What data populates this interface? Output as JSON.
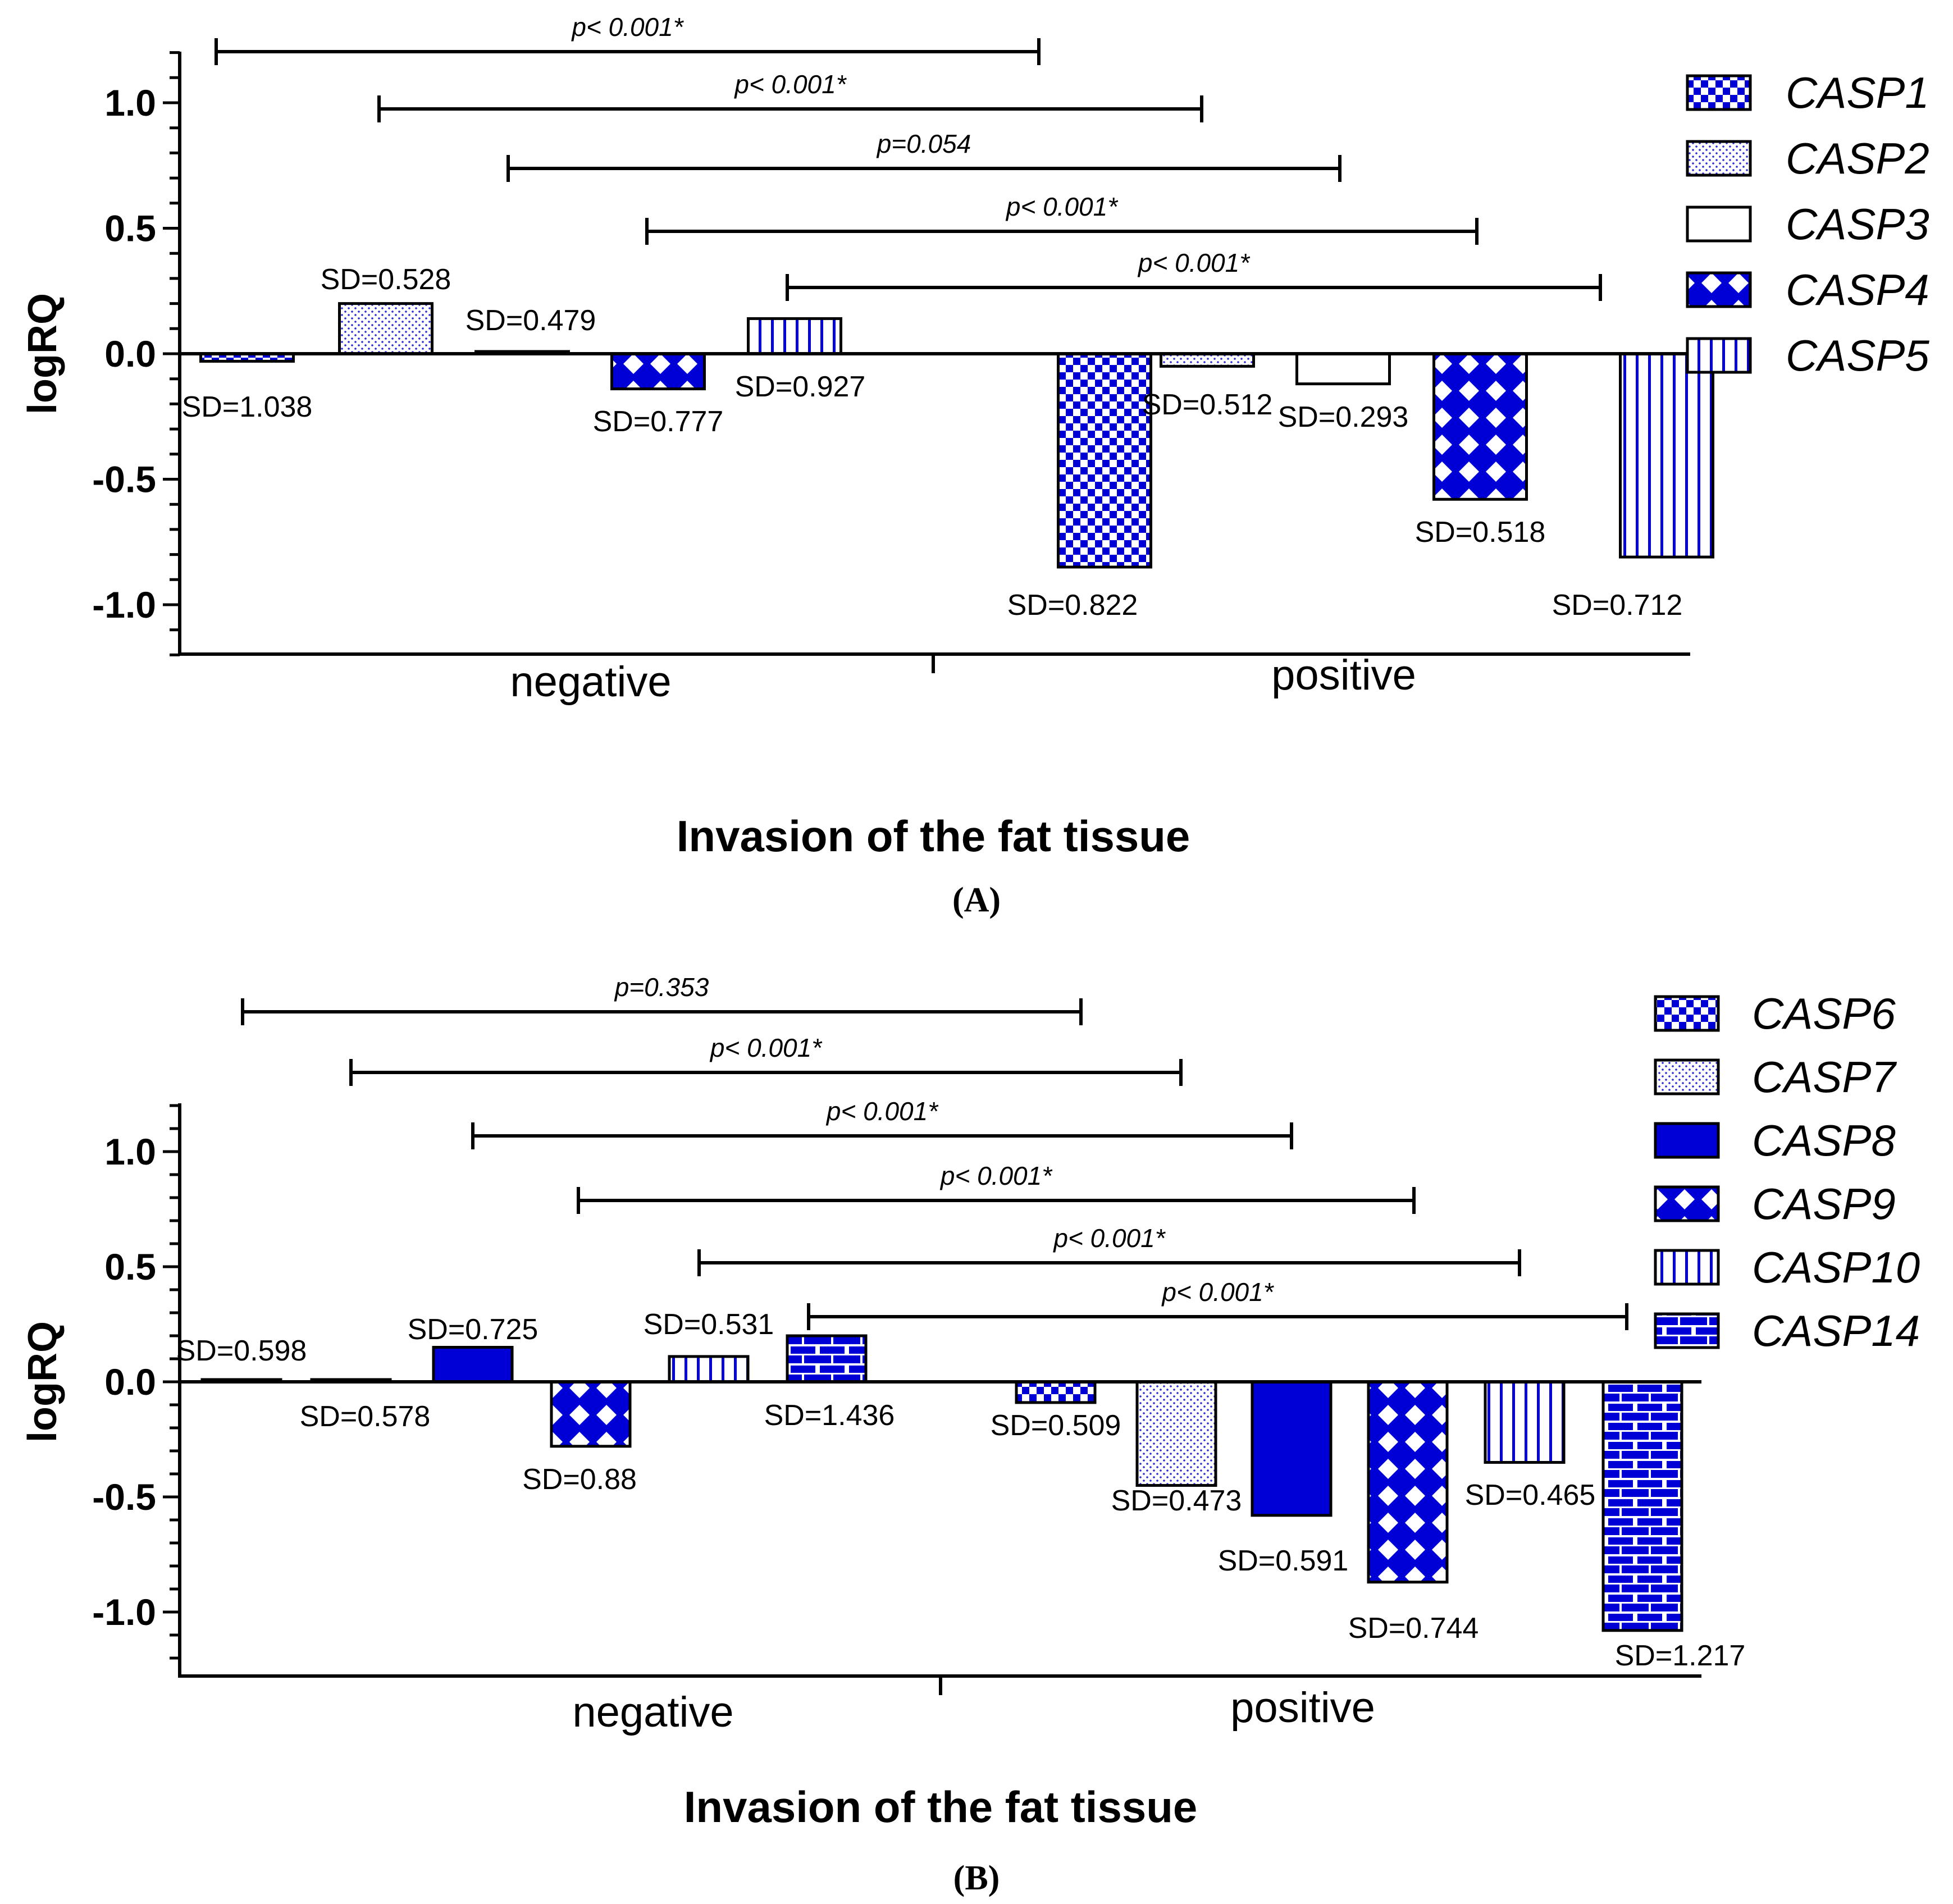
{
  "colors": {
    "bar_blue": "#0000d6",
    "ink": "#000000",
    "background": "#ffffff"
  },
  "chart_data": [
    {
      "type": "bar",
      "panel_label": "(A)",
      "title": "",
      "xlabel": "Invasion of the fat tissue",
      "ylabel": "logRQ",
      "categories": [
        "negative",
        "positive"
      ],
      "ylim": [
        -1.2,
        1.2
      ],
      "yticks": [
        "1.0",
        "0.5",
        "0.0",
        "-0.5",
        "-1.0"
      ],
      "legend_position": "right",
      "series": [
        {
          "name": "CASP1",
          "pattern": "checker",
          "values": [
            -0.03,
            -0.85
          ],
          "sd_labels": [
            "SD=1.038",
            "SD=0.822"
          ]
        },
        {
          "name": "CASP2",
          "pattern": "dots",
          "values": [
            0.2,
            -0.05
          ],
          "sd_labels": [
            "SD=0.528",
            "SD=0.512"
          ]
        },
        {
          "name": "CASP3",
          "pattern": "empty",
          "values": [
            0.0,
            -0.12
          ],
          "sd_labels": [
            "SD=0.479",
            "SD=0.293"
          ]
        },
        {
          "name": "CASP4",
          "pattern": "cross",
          "values": [
            -0.14,
            -0.58
          ],
          "sd_labels": [
            "SD=0.777",
            "SD=0.518"
          ]
        },
        {
          "name": "CASP5",
          "pattern": "vlines",
          "values": [
            0.14,
            -0.81
          ],
          "sd_labels": [
            "SD=0.927",
            "SD=0.712"
          ]
        }
      ],
      "comparisons": [
        {
          "label": "p< 0.001*"
        },
        {
          "label": "p< 0.001*"
        },
        {
          "label": "p=0.054"
        },
        {
          "label": "p< 0.001*"
        },
        {
          "label": "p< 0.001*"
        }
      ]
    },
    {
      "type": "bar",
      "panel_label": "(B)",
      "title": "",
      "xlabel": "Invasion of the fat tissue",
      "ylabel": "logRQ",
      "categories": [
        "negative",
        "positive"
      ],
      "ylim": [
        -1.25,
        1.2
      ],
      "yticks": [
        "1.0",
        "0.5",
        "0.0",
        "-0.5",
        "-1.0"
      ],
      "legend_position": "right",
      "series": [
        {
          "name": "CASP6",
          "pattern": "checker",
          "values": [
            0.0,
            -0.09
          ],
          "sd_labels": [
            "SD=0.598",
            "SD=0.509"
          ]
        },
        {
          "name": "CASP7",
          "pattern": "dots",
          "values": [
            0.0,
            -0.45
          ],
          "sd_labels": [
            "SD=0.578",
            "SD=0.473"
          ]
        },
        {
          "name": "CASP8",
          "pattern": "solid",
          "values": [
            0.15,
            -0.58
          ],
          "sd_labels": [
            "SD=0.725",
            "SD=0.591"
          ]
        },
        {
          "name": "CASP9",
          "pattern": "cross",
          "values": [
            -0.28,
            -0.87
          ],
          "sd_labels": [
            "SD=0.88",
            "SD=0.744"
          ]
        },
        {
          "name": "CASP10",
          "pattern": "vlines",
          "values": [
            0.11,
            -0.35
          ],
          "sd_labels": [
            "SD=0.531",
            "SD=0.465"
          ]
        },
        {
          "name": "CASP14",
          "pattern": "brick",
          "values": [
            0.2,
            -1.08
          ],
          "sd_labels": [
            "SD=1.436",
            "SD=1.217"
          ]
        }
      ],
      "comparisons": [
        {
          "label": "p=0.353"
        },
        {
          "label": "p< 0.001*"
        },
        {
          "label": "p< 0.001*"
        },
        {
          "label": "p< 0.001*"
        },
        {
          "label": "p< 0.001*"
        },
        {
          "label": "p< 0.001*"
        }
      ]
    }
  ]
}
